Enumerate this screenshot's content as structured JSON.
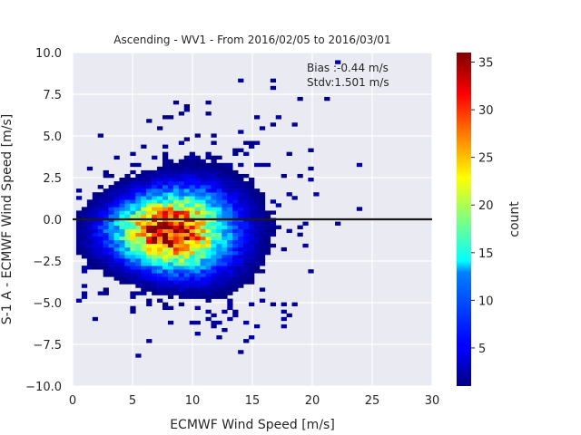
{
  "chart_data": {
    "type": "heatmap",
    "title": "Ascending - WV1 - From 2016/02/05 to 2016/03/01",
    "xlabel": "ECMWF Wind Speed [m/s]",
    "ylabel": "S-1 A - ECMWF Wind Speed [m/s]",
    "xlim": [
      0,
      30
    ],
    "ylim": [
      -10,
      10
    ],
    "x_ticks": [
      "0",
      "5",
      "10",
      "15",
      "20",
      "25",
      "30"
    ],
    "y_ticks": [
      "−10.0",
      "−7.5",
      "−5.0",
      "−2.5",
      "0.0",
      "2.5",
      "5.0",
      "7.5",
      "10.0"
    ],
    "grid": true,
    "annotations": [
      "Bias :-0.44 m/s",
      "Stdv:1.501 m/s"
    ],
    "reference_line_y": 0,
    "colorbar": {
      "label": "count",
      "range": [
        1,
        36
      ],
      "ticks": [
        "5",
        "10",
        "15",
        "20",
        "25",
        "30",
        "35"
      ],
      "colormap": "jet"
    },
    "density_model": {
      "peak_x": 8.0,
      "peak_y": -0.8,
      "peak_count": 36,
      "sigma_x": 3.2,
      "sigma_y": 1.15,
      "x_range": [
        0.3,
        24.0
      ],
      "y_range": [
        -8.5,
        9.8
      ]
    }
  }
}
